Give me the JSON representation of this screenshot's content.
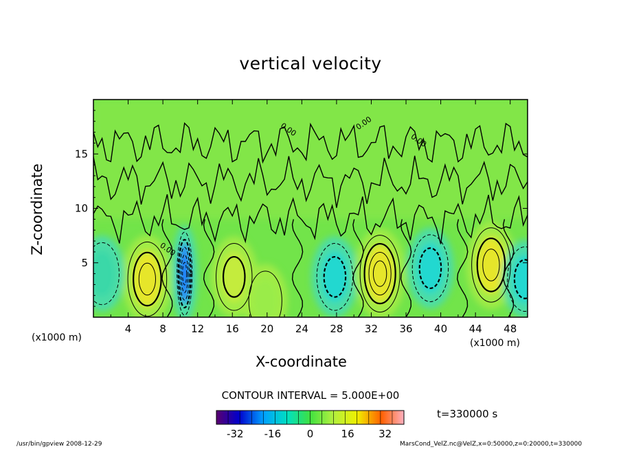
{
  "chart_data": {
    "type": "heatmap",
    "title": "vertical velocity",
    "xlabel": "X-coordinate",
    "ylabel": "Z-coordinate",
    "x_unit": "(x1000 m)",
    "y_unit": "(x1000 m)",
    "x_range": [
      0,
      50
    ],
    "y_range": [
      0,
      20
    ],
    "x_ticks": [
      4,
      8,
      12,
      16,
      20,
      24,
      28,
      32,
      36,
      40,
      44,
      48
    ],
    "y_ticks": [
      5,
      10,
      15
    ],
    "contour_interval_text": "CONTOUR INTERVAL = 5.000E+00",
    "contour_labels": [
      "0.00",
      "0.00",
      "0.00",
      "0.00"
    ],
    "colorbar": {
      "range": [
        -40,
        40
      ],
      "ticks": [
        -32,
        -16,
        0,
        16,
        32
      ]
    },
    "time_text": "t=330000 s",
    "cells": [
      {
        "x": 6.2,
        "z": 3.5,
        "value": 18,
        "sign": "positive"
      },
      {
        "x": 10.5,
        "z": 4.0,
        "value": -25,
        "sign": "negative"
      },
      {
        "x": 16.2,
        "z": 3.7,
        "value": 12,
        "sign": "positive"
      },
      {
        "x": 19.8,
        "z": 1.5,
        "value": 6,
        "sign": "positive"
      },
      {
        "x": 27.8,
        "z": 3.7,
        "value": -12,
        "sign": "negative"
      },
      {
        "x": 33.0,
        "z": 4.0,
        "value": 20,
        "sign": "positive"
      },
      {
        "x": 38.8,
        "z": 4.5,
        "value": -12,
        "sign": "negative"
      },
      {
        "x": 45.8,
        "z": 4.8,
        "value": 18,
        "sign": "positive"
      },
      {
        "x": 49.7,
        "z": 3.5,
        "value": -10,
        "sign": "negative"
      },
      {
        "x": 1.0,
        "z": 4.0,
        "value": -8,
        "sign": "negative"
      }
    ]
  },
  "footer": {
    "left": "/usr/bin/gpview  2008-12-29",
    "right": "MarsCond_VelZ.nc@VelZ,x=0:50000,z=0:20000,t=330000"
  }
}
